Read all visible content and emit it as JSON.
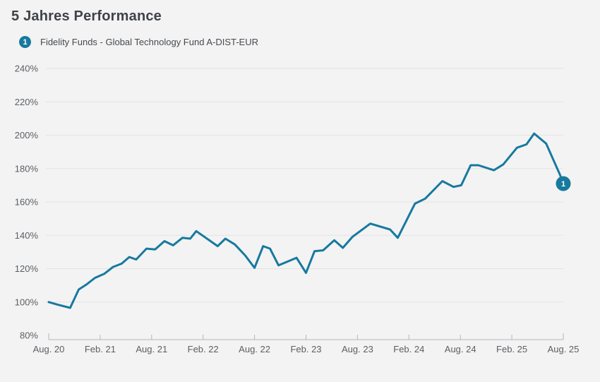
{
  "header": {
    "title": "5 Jahres Performance"
  },
  "legend": {
    "items": [
      {
        "number": "1",
        "label": "Fidelity Funds - Global Technology Fund A-DIST-EUR"
      }
    ]
  },
  "colors": {
    "series_teal": "#17799e",
    "background": "#f3f3f4",
    "gridline": "#e3e3e4",
    "axis": "#b5b5b6",
    "tick_label": "#5b5e61",
    "title_text": "#3f4347",
    "badge_text": "#ffffff"
  },
  "chart_data": {
    "type": "line",
    "title": "5 Jahres Performance",
    "grid": "horizontal",
    "legend_position": "top-left",
    "x_unit": "months since Aug. 2020",
    "x_min": 0,
    "x_max": 60,
    "y_min": 80,
    "y_max": 240,
    "y_ticks": [
      {
        "value": 240,
        "label": "240%"
      },
      {
        "value": 220,
        "label": "220%"
      },
      {
        "value": 200,
        "label": "200%"
      },
      {
        "value": 180,
        "label": "180%"
      },
      {
        "value": 160,
        "label": "160%"
      },
      {
        "value": 140,
        "label": "140%"
      },
      {
        "value": 120,
        "label": "120%"
      },
      {
        "value": 100,
        "label": "100%"
      },
      {
        "value": 80,
        "label": "80%"
      }
    ],
    "x_ticks": [
      {
        "pos": 0,
        "label": "Aug. 20"
      },
      {
        "pos": 6,
        "label": "Feb. 21"
      },
      {
        "pos": 12,
        "label": "Aug. 21"
      },
      {
        "pos": 18,
        "label": "Feb. 22"
      },
      {
        "pos": 24,
        "label": "Aug. 22"
      },
      {
        "pos": 30,
        "label": "Feb. 23"
      },
      {
        "pos": 36,
        "label": "Aug. 23"
      },
      {
        "pos": 42,
        "label": "Feb. 24"
      },
      {
        "pos": 48,
        "label": "Aug. 24"
      },
      {
        "pos": 54,
        "label": "Feb. 25"
      },
      {
        "pos": 60,
        "label": "Aug. 25"
      }
    ],
    "series": [
      {
        "name": "Fidelity Funds - Global Technology Fund A-DIST-EUR",
        "marker": "1",
        "color": "#17799e",
        "unit": "%",
        "points": [
          [
            0,
            100
          ],
          [
            1,
            98.5
          ],
          [
            2.5,
            96.5
          ],
          [
            3.5,
            107.5
          ],
          [
            4.4,
            110.5
          ],
          [
            5.4,
            114.5
          ],
          [
            6.5,
            117
          ],
          [
            7.5,
            121
          ],
          [
            8.5,
            123
          ],
          [
            9.4,
            127
          ],
          [
            10.2,
            125.5
          ],
          [
            11.4,
            132
          ],
          [
            12.4,
            131.5
          ],
          [
            13.5,
            136.5
          ],
          [
            14.5,
            134
          ],
          [
            15.6,
            138.5
          ],
          [
            16.5,
            138
          ],
          [
            17.2,
            142.5
          ],
          [
            19.7,
            133.5
          ],
          [
            20.6,
            138
          ],
          [
            21.7,
            134.5
          ],
          [
            22.9,
            128
          ],
          [
            24,
            120.5
          ],
          [
            25,
            133.5
          ],
          [
            25.8,
            132
          ],
          [
            26.8,
            122
          ],
          [
            28.9,
            126.5
          ],
          [
            30,
            117.5
          ],
          [
            31,
            130.5
          ],
          [
            32,
            131
          ],
          [
            33.3,
            137
          ],
          [
            34.3,
            132.5
          ],
          [
            35.4,
            139
          ],
          [
            37.5,
            147
          ],
          [
            39.8,
            143.5
          ],
          [
            40.7,
            138.5
          ],
          [
            42.7,
            159
          ],
          [
            43.9,
            162
          ],
          [
            45.9,
            172.5
          ],
          [
            47.2,
            169
          ],
          [
            48.1,
            170
          ],
          [
            49.2,
            182
          ],
          [
            50.1,
            182
          ],
          [
            51.9,
            179
          ],
          [
            53,
            182.5
          ],
          [
            54.6,
            192.5
          ],
          [
            55.7,
            194.5
          ],
          [
            56.6,
            201
          ],
          [
            58,
            195
          ],
          [
            59.6,
            176.5
          ],
          [
            60,
            171
          ]
        ]
      }
    ]
  }
}
